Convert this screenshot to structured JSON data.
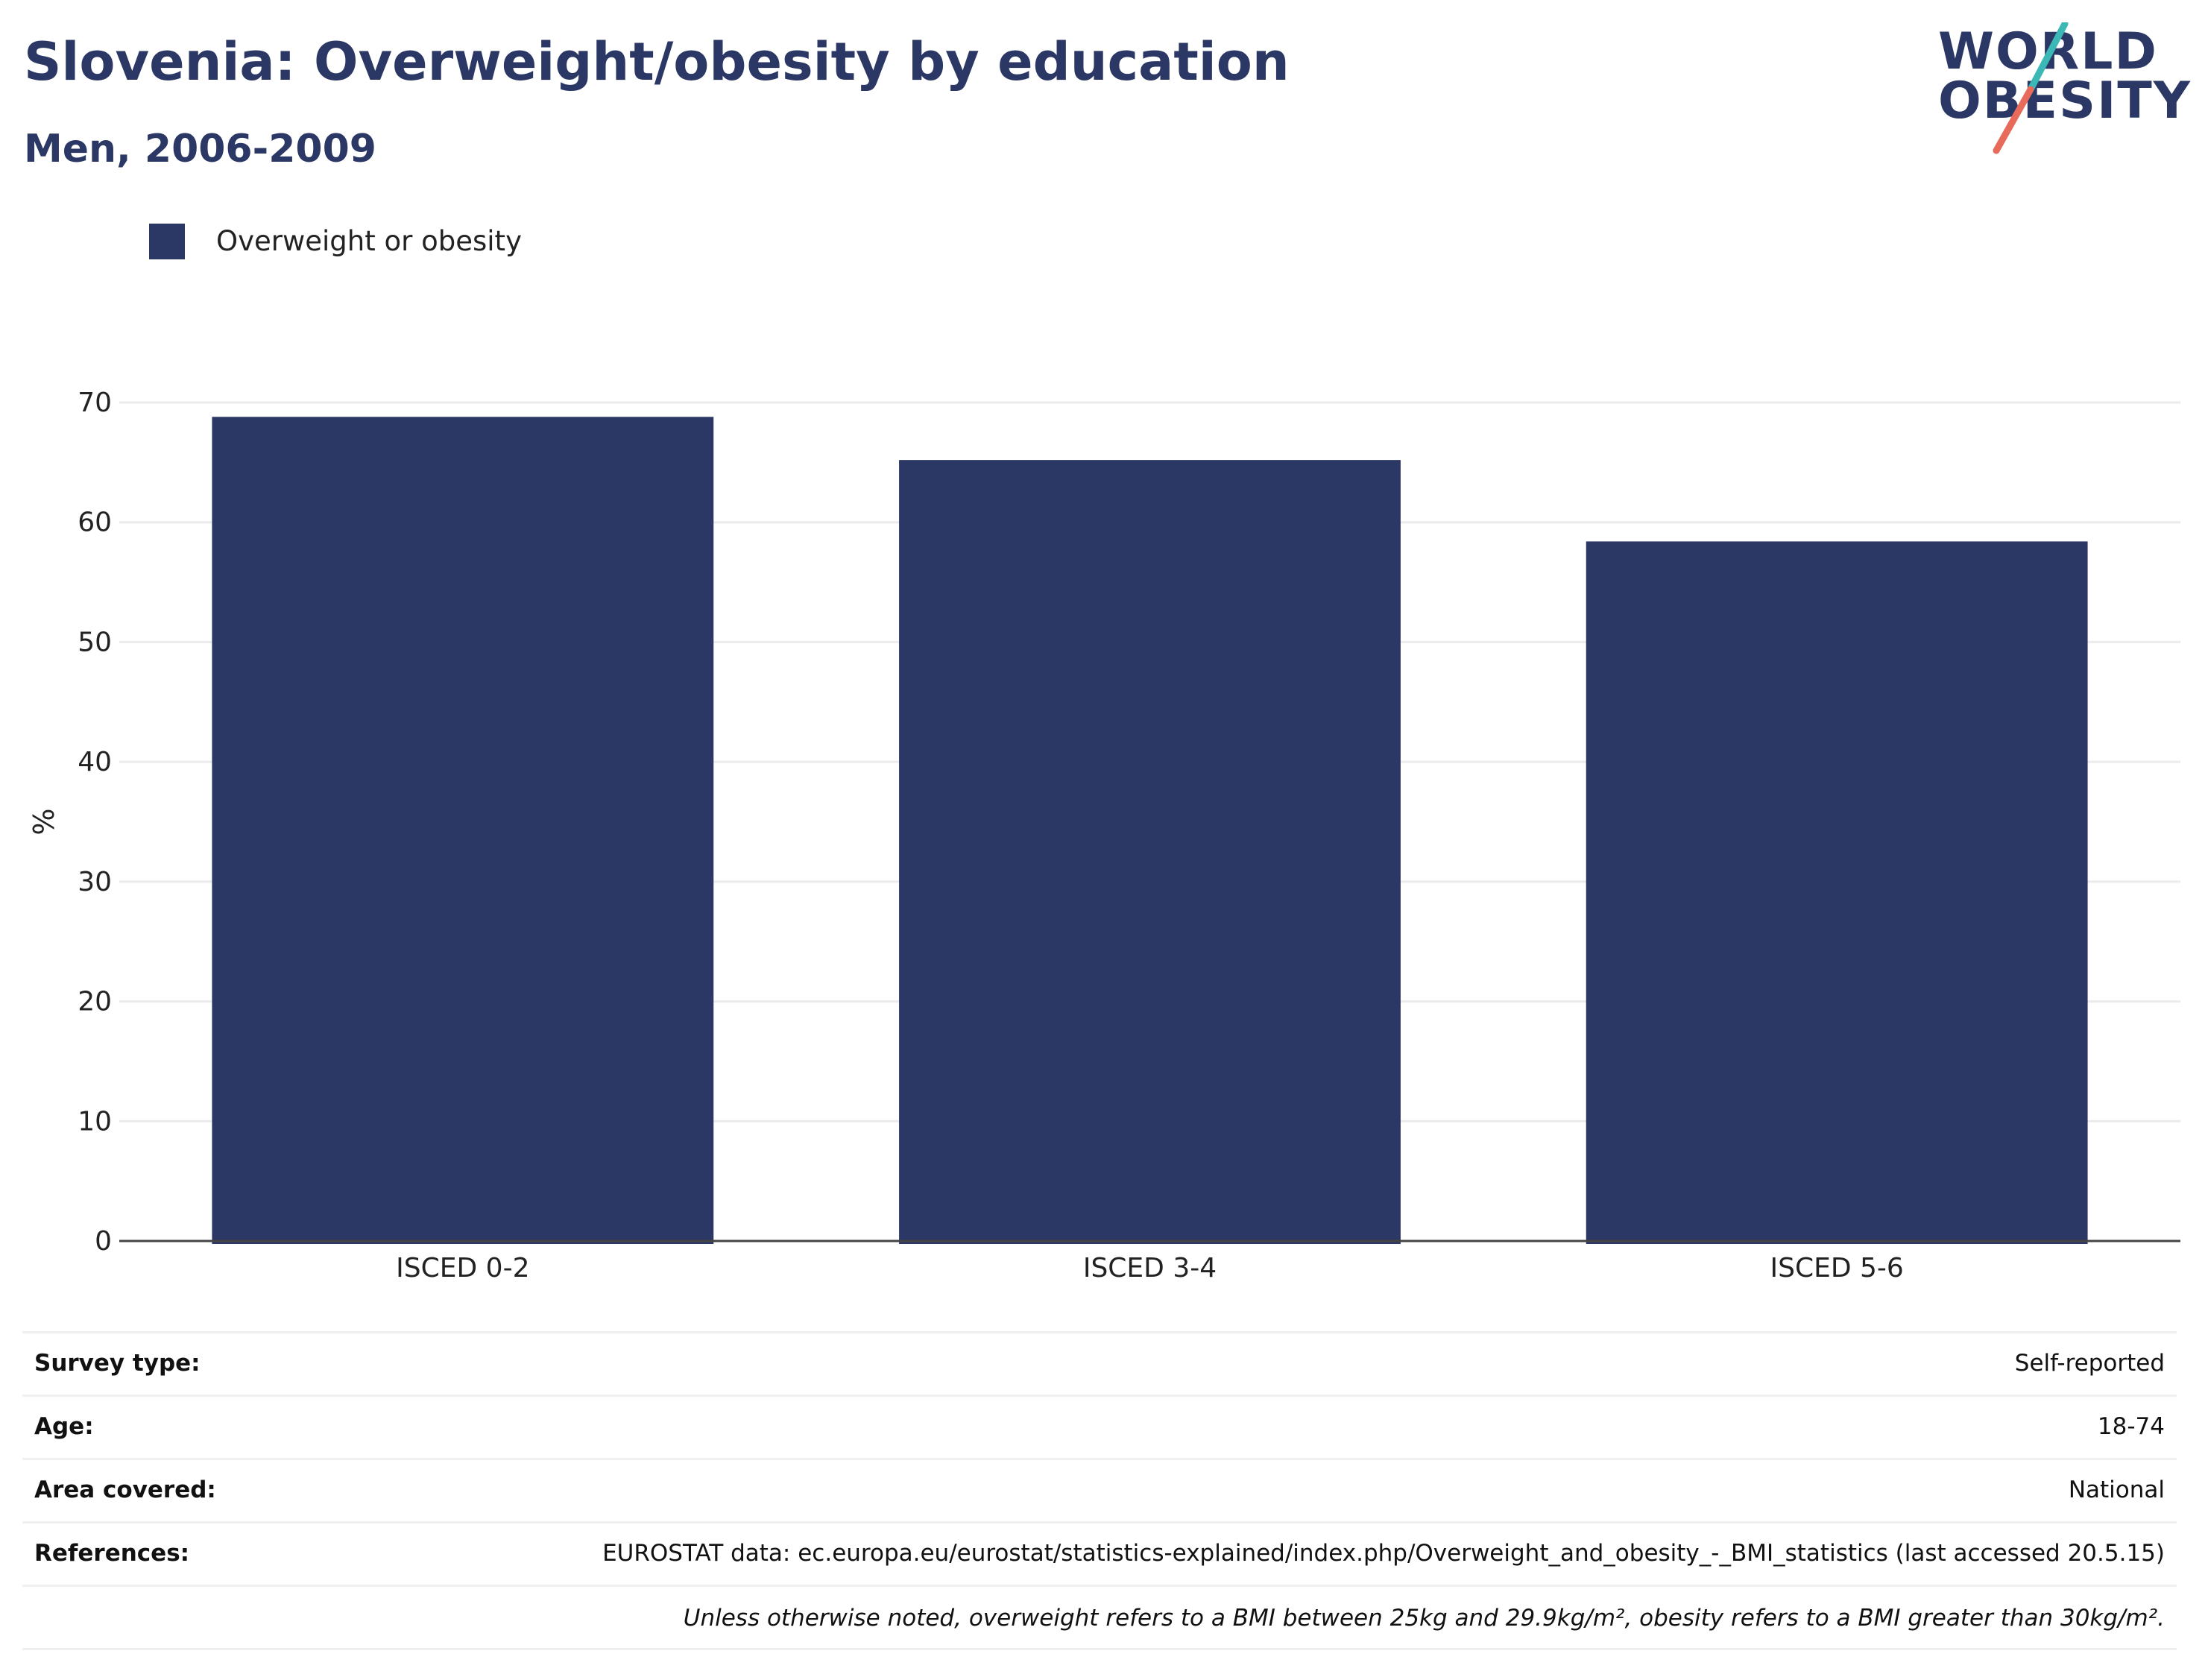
{
  "header": {
    "title": "Slovenia: Overweight/obesity by education",
    "subtitle": "Men, 2006-2009"
  },
  "logo": {
    "line1": "WORLD",
    "line2": "OBESITY",
    "accent_colors": [
      "#3bb8b5",
      "#e86a5b"
    ]
  },
  "colors": {
    "bar": "#2b3764",
    "title": "#2b3764",
    "grid": "#ebebeb",
    "axis": "#444444"
  },
  "chart_data": {
    "type": "bar",
    "categories": [
      "ISCED 0-2",
      "ISCED 3-4",
      "ISCED 5-6"
    ],
    "series": [
      {
        "name": "Overweight or obesity",
        "values": [
          68.8,
          65.2,
          58.4
        ]
      }
    ],
    "ylabel": "%",
    "ylim": [
      0,
      70
    ],
    "yticks": [
      0,
      10,
      20,
      30,
      40,
      50,
      60,
      70
    ],
    "grid": true,
    "legend_position": "top-left"
  },
  "info": {
    "rows": [
      {
        "key": "Survey type:",
        "value": "Self-reported"
      },
      {
        "key": "Age:",
        "value": "18-74"
      },
      {
        "key": "Area covered:",
        "value": "National"
      },
      {
        "key": "References:",
        "value": "EUROSTAT data: ec.europa.eu/eurostat/statistics-explained/index.php/Overweight_and_obesity_-_BMI_statistics (last accessed 20.5.15)"
      }
    ],
    "note": "Unless otherwise noted, overweight refers to a BMI between 25kg and 29.9kg/m², obesity refers to a BMI greater than 30kg/m²."
  }
}
